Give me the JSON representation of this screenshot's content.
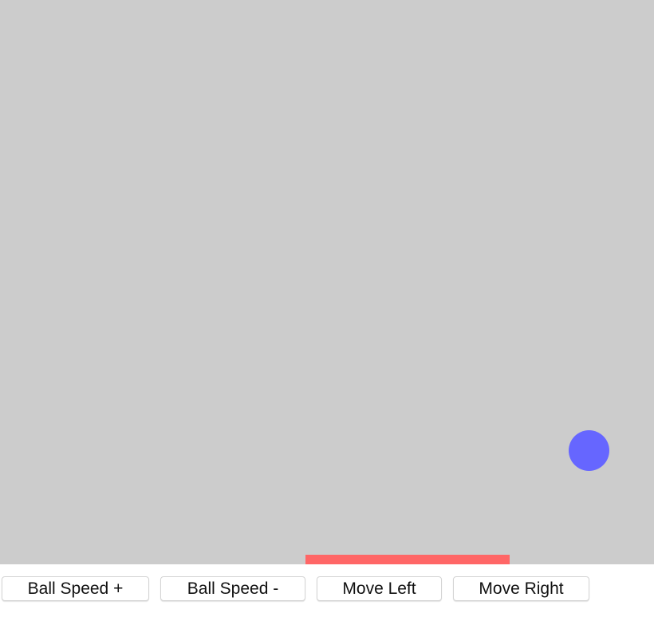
{
  "game": {
    "background_color": "#cccccc",
    "ball_color": "#6666ff",
    "paddle_color": "#ff6666"
  },
  "controls": {
    "ball_speed_up_label": "Ball Speed +",
    "ball_speed_down_label": "Ball Speed -",
    "move_left_label": "Move Left",
    "move_right_label": "Move Right"
  }
}
